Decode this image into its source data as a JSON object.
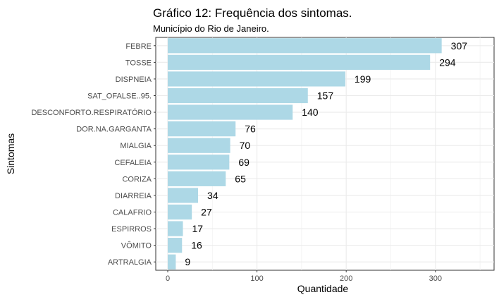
{
  "chart_data": {
    "type": "bar",
    "orientation": "horizontal",
    "title": "Gráfico 12: Frequência dos sintomas.",
    "subtitle": "Município do Rio de Janeiro.",
    "xlabel": "Quantidade",
    "ylabel": "Sintomas",
    "xlim": [
      0,
      350
    ],
    "x_ticks": [
      0,
      100,
      200,
      300
    ],
    "grid": true,
    "bar_color": "#add8e6",
    "categories": [
      "FEBRE",
      "TOSSE",
      "DISPNEIA",
      "SAT_OFALSE..95.",
      "DESCONFORTO.RESPIRATÓRIO",
      "DOR.NA.GARGANTA",
      "MIALGIA",
      "CEFALEIA",
      "CORIZA",
      "DIARREIA",
      "CALAFRIO",
      "ESPIRROS",
      "VÔMITO",
      "ARTRALGIA"
    ],
    "values": [
      307,
      294,
      199,
      157,
      140,
      76,
      70,
      69,
      65,
      34,
      27,
      17,
      16,
      9
    ]
  }
}
